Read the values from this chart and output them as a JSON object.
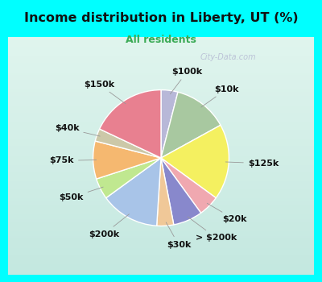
{
  "title": "Income distribution in Liberty, UT (%)",
  "subtitle": "All residents",
  "title_color": "#111111",
  "subtitle_color": "#3aaa55",
  "background_outer": "#00ffff",
  "background_inner_top": "#c8ece4",
  "background_inner_bottom": "#d8f0e8",
  "watermark": "City-Data.com",
  "slices": [
    {
      "label": "$100k",
      "value": 4,
      "color": "#b8b8d8"
    },
    {
      "label": "$10k",
      "value": 13,
      "color": "#a8c8a0"
    },
    {
      "label": "$125k",
      "value": 18,
      "color": "#f4f060"
    },
    {
      "label": "$20k",
      "value": 5,
      "color": "#f0a8b0"
    },
    {
      "label": "> $200k",
      "value": 7,
      "color": "#8888cc"
    },
    {
      "label": "$30k",
      "value": 4,
      "color": "#f0c898"
    },
    {
      "label": "$200k",
      "value": 14,
      "color": "#a8c4e8"
    },
    {
      "label": "$50k",
      "value": 5,
      "color": "#c0e890"
    },
    {
      "label": "$75k",
      "value": 9,
      "color": "#f5b870"
    },
    {
      "label": "$40k",
      "value": 3,
      "color": "#ccc8a8"
    },
    {
      "label": "$150k",
      "value": 18,
      "color": "#e88090"
    }
  ],
  "startangle": 90,
  "label_fontsize": 8.0,
  "label_color": "#111111"
}
